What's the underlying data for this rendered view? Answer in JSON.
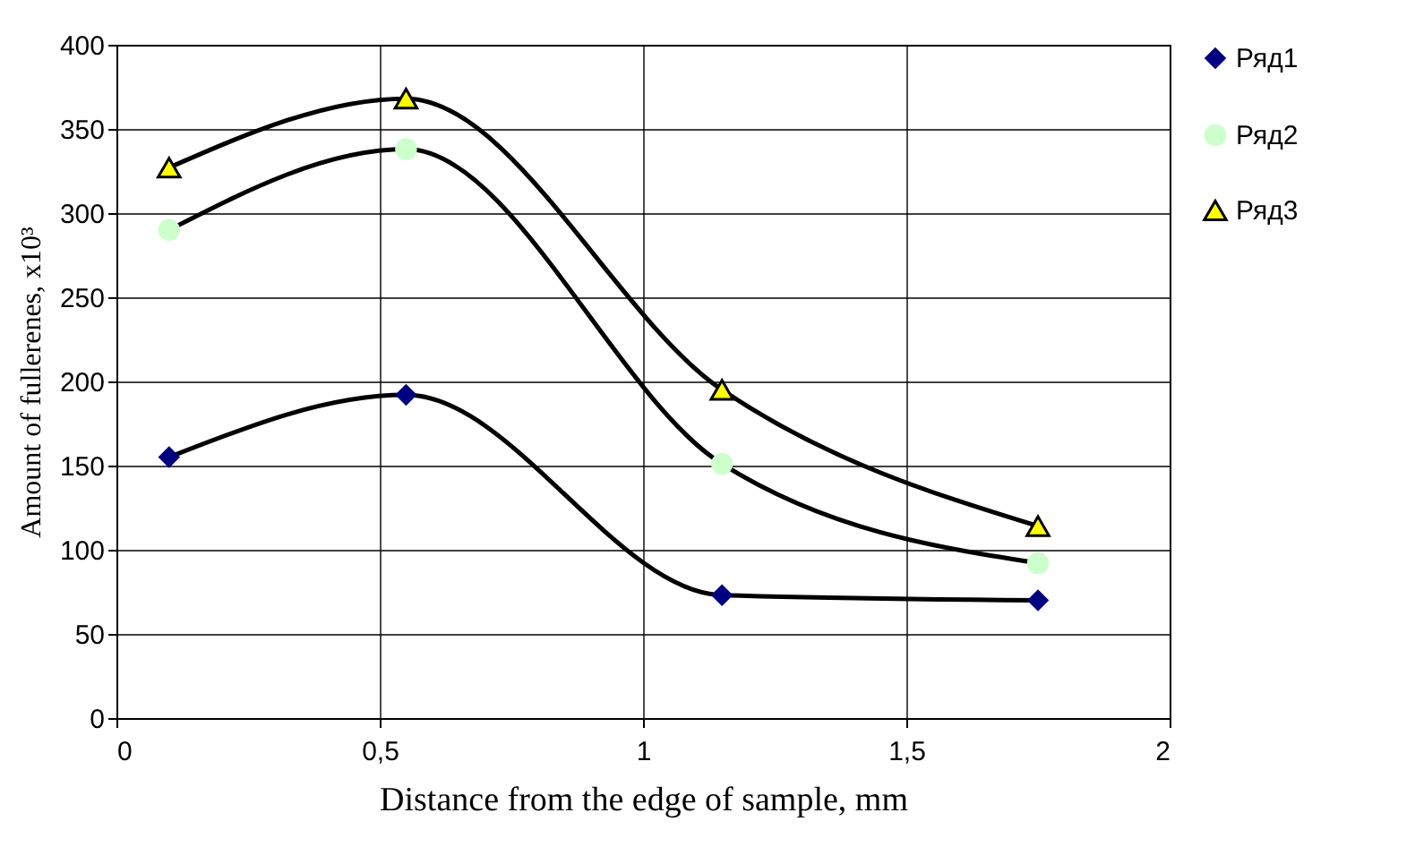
{
  "chart_data": {
    "type": "line",
    "xlabel": "Distance from the edge of sample, mm",
    "ylabel": "Amount of fullerenes, x10³",
    "x": [
      0.1,
      0.55,
      1.15,
      1.75
    ],
    "series": [
      {
        "name": "Ряд1",
        "color": "#000080",
        "marker": "diamond",
        "values": [
          155,
          192,
          73,
          70
        ]
      },
      {
        "name": "Ряд2",
        "color": "#ccffcc",
        "marker": "circle",
        "values": [
          290,
          338,
          151,
          92
        ]
      },
      {
        "name": "Ряд3",
        "color": "#ffff00",
        "marker": "triangle",
        "values": [
          327,
          368,
          195,
          114
        ]
      }
    ],
    "xlim": [
      0,
      2
    ],
    "xticks": [
      0,
      {
        "value": 0.5,
        "label": "0,5"
      },
      1,
      {
        "value": 1.5,
        "label": "1,5"
      },
      2
    ],
    "ylim": [
      0,
      400
    ],
    "yticks": [
      0,
      50,
      100,
      150,
      200,
      250,
      300,
      350,
      400
    ],
    "grid": true,
    "legend": "right",
    "line_style": "solid"
  }
}
